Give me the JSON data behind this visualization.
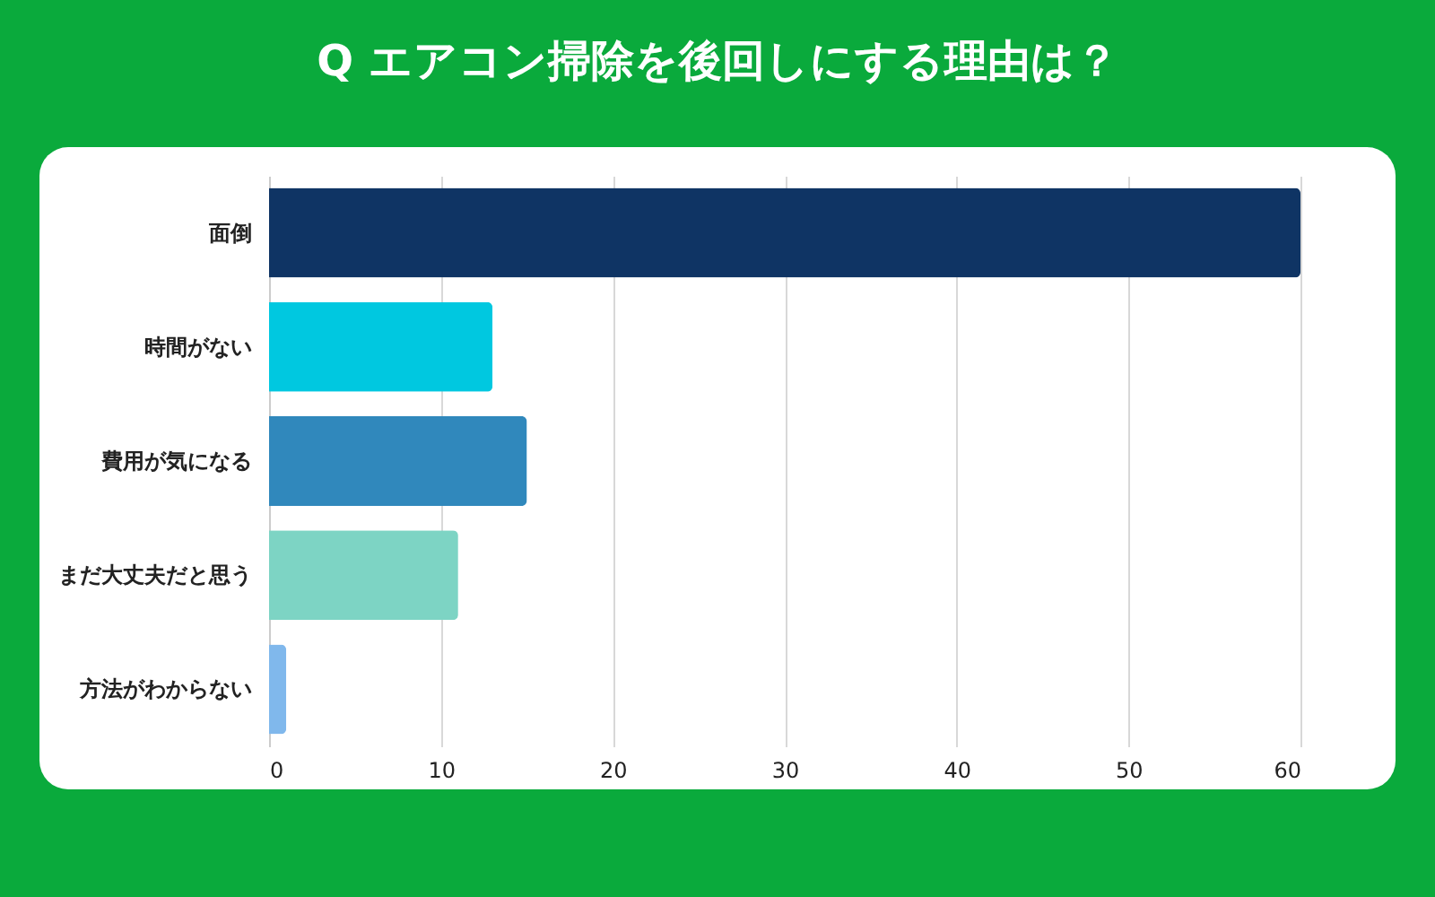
{
  "chart_data": {
    "type": "bar",
    "orientation": "horizontal",
    "title": "Q エアコン掃除を後回しにする理由は？",
    "categories": [
      "面倒",
      "時間がない",
      "費用が気になる",
      "まだ大丈夫だと思う",
      "方法がわからない"
    ],
    "values": [
      60,
      13,
      15,
      11,
      1
    ],
    "colors": [
      "#0f3464",
      "#00c8e0",
      "#3088bc",
      "#7dd4c4",
      "#80b8ec"
    ],
    "xlim": [
      0,
      60
    ],
    "xticks": [
      0,
      10,
      20,
      30,
      40,
      50,
      60
    ],
    "grid": "x"
  }
}
